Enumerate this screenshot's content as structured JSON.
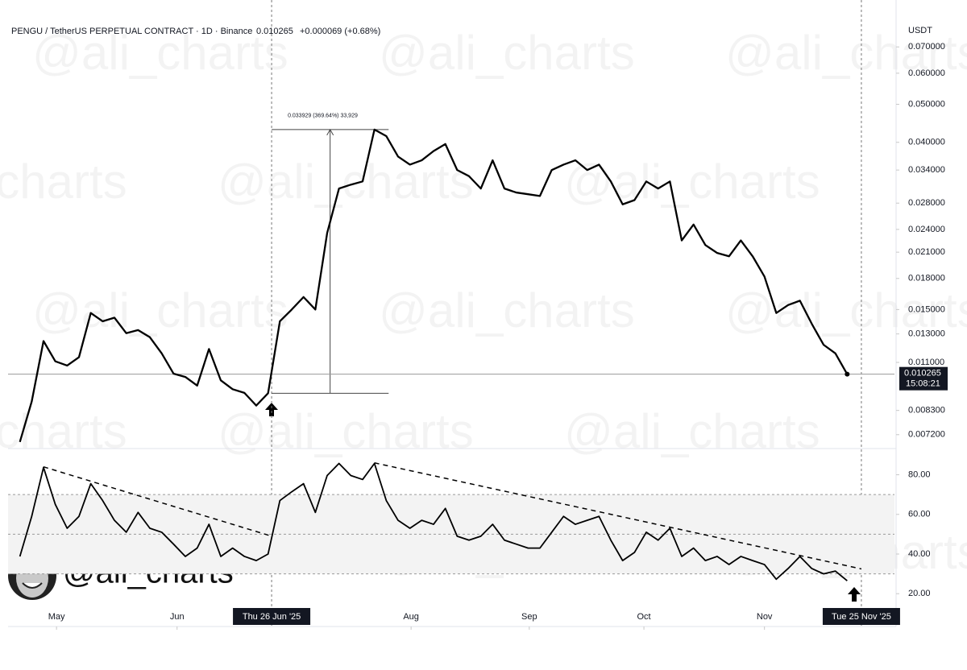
{
  "watermark": "@ali_charts",
  "chart_data": [
    {
      "type": "line",
      "title": "PENGU / TetherUS PERPETUAL CONTRACT · 1D · Binance",
      "change": "+0.000069 (+0.68%)",
      "unit": "USDT",
      "countdown": "15:08:21",
      "color": "#000000",
      "log_y": true,
      "xlim": [
        -1,
        74
      ],
      "ylim": [
        0.0067,
        0.08
      ],
      "yticks": [
        {
          "value": 0.07,
          "label": "0.070000"
        },
        {
          "value": 0.06,
          "label": "0.060000"
        },
        {
          "value": 0.05,
          "label": "0.050000"
        },
        {
          "value": 0.04,
          "label": "0.040000"
        },
        {
          "value": 0.034,
          "label": "0.034000"
        },
        {
          "value": 0.028,
          "label": "0.028000"
        },
        {
          "value": 0.024,
          "label": "0.024000"
        },
        {
          "value": 0.021,
          "label": "0.021000"
        },
        {
          "value": 0.018,
          "label": "0.018000"
        },
        {
          "value": 0.015,
          "label": "0.015000"
        },
        {
          "value": 0.013,
          "label": "0.013000"
        },
        {
          "value": 0.011,
          "label": "0.011000"
        },
        {
          "value": 0.0083,
          "label": "0.008300"
        },
        {
          "value": 0.0072,
          "label": "0.007200"
        }
      ],
      "values": [
        0.0069,
        0.00874,
        0.01247,
        0.01107,
        0.0108,
        0.01134,
        0.0147,
        0.014,
        0.0143,
        0.01306,
        0.0133,
        0.01275,
        0.0116,
        0.0103,
        0.0101,
        0.0096,
        0.0119,
        0.0099,
        0.0094,
        0.0092,
        0.00854,
        0.00918,
        0.014,
        0.015,
        0.01614,
        0.015,
        0.0235,
        0.0305,
        0.0312,
        0.0318,
        0.04311,
        0.0415,
        0.0368,
        0.0351,
        0.036,
        0.038,
        0.0396,
        0.034,
        0.0328,
        0.0305,
        0.036,
        0.0305,
        0.0298,
        0.0295,
        0.0292,
        0.034,
        0.0351,
        0.036,
        0.034,
        0.0351,
        0.0318,
        0.0278,
        0.0285,
        0.0318,
        0.0305,
        0.0318,
        0.0225,
        0.0247,
        0.0219,
        0.0209,
        0.0205,
        0.0225,
        0.0205,
        0.0182,
        0.0147,
        0.0154,
        0.0158,
        0.0138,
        0.0122,
        0.0116,
        0.010265
      ],
      "measure": {
        "label": "0.033929 (369.64%) 33,929",
        "from": 0.00918,
        "to": 0.04311,
        "x": [
          21.3,
          31.2
        ]
      },
      "crosshairs": [
        {
          "x": 21.3,
          "label": "Thu 26 Jun '25"
        },
        {
          "x": 71.2,
          "label": "Tue 25 Nov '25"
        }
      ]
    },
    {
      "type": "line",
      "color": "#000000",
      "xlim": [
        -1,
        74
      ],
      "ylim": [
        14,
        92
      ],
      "yticks": [
        {
          "value": 80,
          "label": "80.00"
        },
        {
          "value": 60,
          "label": "60.00"
        },
        {
          "value": 40,
          "label": "40.00"
        },
        {
          "value": 20,
          "label": "20.00"
        }
      ],
      "bands": [
        30,
        50,
        70
      ],
      "xticks": [
        {
          "value": 3.1,
          "label": "May"
        },
        {
          "value": 13.3,
          "label": "Jun"
        },
        {
          "value": 33.1,
          "label": "Aug"
        },
        {
          "value": 43.1,
          "label": "Sep"
        },
        {
          "value": 52.8,
          "label": "Oct"
        },
        {
          "value": 63,
          "label": "Nov"
        }
      ],
      "values": [
        38.8,
        59,
        83.7,
        65,
        53,
        59,
        75.5,
        67,
        57,
        51,
        61,
        53,
        51,
        45,
        38.8,
        43,
        55,
        38.8,
        43,
        38.8,
        36.7,
        40,
        67,
        71.4,
        75.5,
        61,
        79.6,
        85.7,
        79.6,
        77.6,
        85.7,
        67,
        57,
        53,
        57,
        55,
        63,
        49,
        47,
        49,
        55,
        47,
        45,
        43,
        43,
        51,
        59,
        55,
        57,
        59,
        47,
        36.7,
        40.8,
        51,
        47,
        53,
        38.8,
        43,
        36.7,
        38.8,
        34.7,
        38.8,
        36.7,
        34.7,
        27.3,
        32.7,
        38.8,
        32.7,
        30,
        31.4,
        26.5
      ],
      "trendlines": [
        {
          "x": [
            2,
            21.3
          ],
          "y": [
            84,
            49
          ]
        },
        {
          "x": [
            30,
            71.2
          ],
          "y": [
            86,
            32.5
          ]
        }
      ]
    }
  ]
}
